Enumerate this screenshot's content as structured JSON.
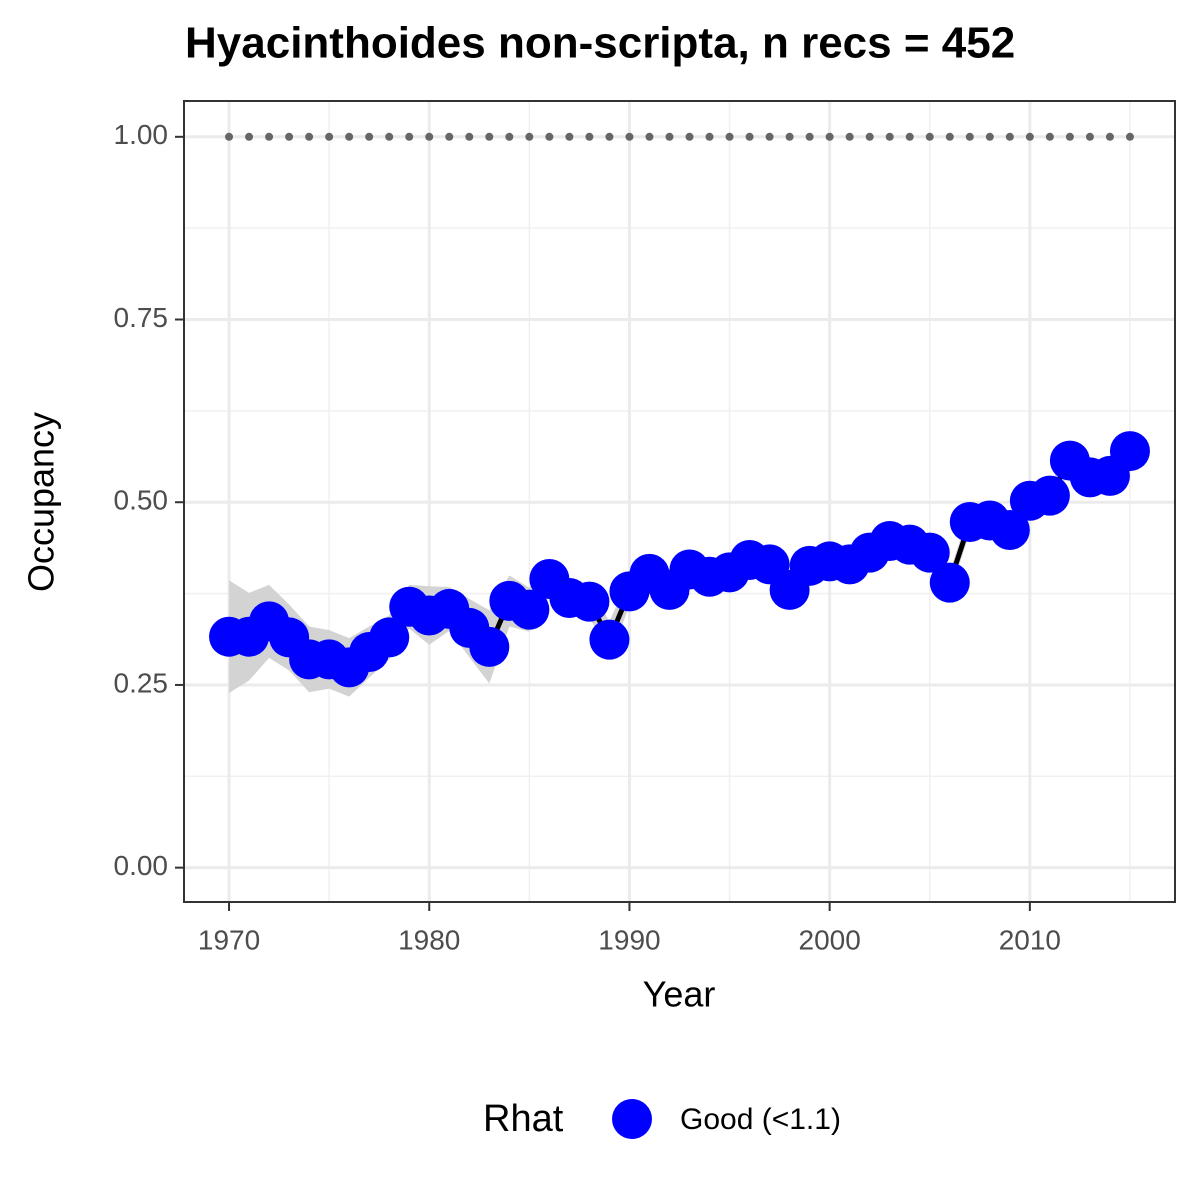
{
  "chart_data": {
    "type": "line",
    "title": "Hyacinthoides non-scripta, n recs = 452",
    "x_label": "Year",
    "y_label": "Occupancy",
    "x": [
      1970,
      1971,
      1972,
      1973,
      1974,
      1975,
      1976,
      1977,
      1978,
      1979,
      1980,
      1981,
      1982,
      1983,
      1984,
      1985,
      1986,
      1987,
      1988,
      1989,
      1990,
      1991,
      1992,
      1993,
      1994,
      1995,
      1996,
      1997,
      1998,
      1999,
      2000,
      2001,
      2002,
      2003,
      2004,
      2005,
      2006,
      2007,
      2008,
      2009,
      2010,
      2011,
      2012,
      2013,
      2014,
      2015
    ],
    "series": [
      {
        "name": "Good (<1.1)",
        "color": "#0000ff",
        "line_color": "#000000",
        "values": [
          0.316,
          0.316,
          0.337,
          0.315,
          0.285,
          0.285,
          0.274,
          0.295,
          0.315,
          0.357,
          0.345,
          0.354,
          0.328,
          0.302,
          0.365,
          0.353,
          0.395,
          0.369,
          0.364,
          0.312,
          0.378,
          0.402,
          0.38,
          0.408,
          0.398,
          0.404,
          0.421,
          0.415,
          0.38,
          0.413,
          0.419,
          0.415,
          0.431,
          0.447,
          0.442,
          0.431,
          0.39,
          0.473,
          0.475,
          0.462,
          0.502,
          0.509,
          0.557,
          0.534,
          0.536,
          0.57
        ]
      }
    ],
    "ribbon": {
      "color": "#d3d3d3",
      "lower": [
        0.239,
        0.256,
        0.287,
        0.27,
        0.24,
        0.245,
        0.234,
        0.26,
        0.285,
        0.327,
        0.305,
        0.324,
        0.288,
        0.252,
        0.33,
        0.323,
        0.37,
        0.349,
        0.344,
        0.287,
        0.358,
        0.382,
        0.36,
        0.388,
        0.378,
        0.384,
        0.401,
        0.395,
        0.36,
        0.393,
        0.399,
        0.395,
        0.411,
        0.427,
        0.422,
        0.411,
        0.375,
        0.458,
        0.46,
        0.447,
        0.487,
        0.494,
        0.542,
        0.519,
        0.521,
        0.555
      ],
      "upper": [
        0.393,
        0.376,
        0.387,
        0.36,
        0.33,
        0.325,
        0.314,
        0.33,
        0.345,
        0.387,
        0.385,
        0.384,
        0.368,
        0.352,
        0.4,
        0.383,
        0.42,
        0.389,
        0.384,
        0.337,
        0.398,
        0.422,
        0.4,
        0.428,
        0.418,
        0.424,
        0.441,
        0.435,
        0.4,
        0.433,
        0.439,
        0.435,
        0.451,
        0.467,
        0.462,
        0.451,
        0.405,
        0.488,
        0.49,
        0.477,
        0.517,
        0.524,
        0.572,
        0.549,
        0.551,
        0.585
      ]
    },
    "reference": {
      "color": "#666666",
      "values": [
        1,
        1,
        1,
        1,
        1,
        1,
        1,
        1,
        1,
        1,
        1,
        1,
        1,
        1,
        1,
        1,
        1,
        1,
        1,
        1,
        1,
        1,
        1,
        1,
        1,
        1,
        1,
        1,
        1,
        1,
        1,
        1,
        1,
        1,
        1,
        1,
        1,
        1,
        1,
        1,
        1,
        1,
        1,
        1,
        1,
        1
      ]
    },
    "xlim": [
      1967.75,
      2017.25
    ],
    "ylim": [
      -0.047,
      1.049
    ],
    "xticks": [
      1970,
      1980,
      1990,
      2000,
      2010
    ],
    "yticks": [
      {
        "value": 0,
        "label": "0.00"
      },
      {
        "value": 0.25,
        "label": "0.25"
      },
      {
        "value": 0.5,
        "label": "0.50"
      },
      {
        "value": 0.75,
        "label": "0.75"
      },
      {
        "value": 1,
        "label": "1.00"
      }
    ],
    "x_minor_grid": [
      1975,
      1985,
      1995,
      2005,
      2015
    ],
    "y_minor_grid": [
      0.125,
      0.375,
      0.625,
      0.875
    ],
    "grid": true,
    "legend_title": "Rhat",
    "legend_position": "bottom"
  }
}
